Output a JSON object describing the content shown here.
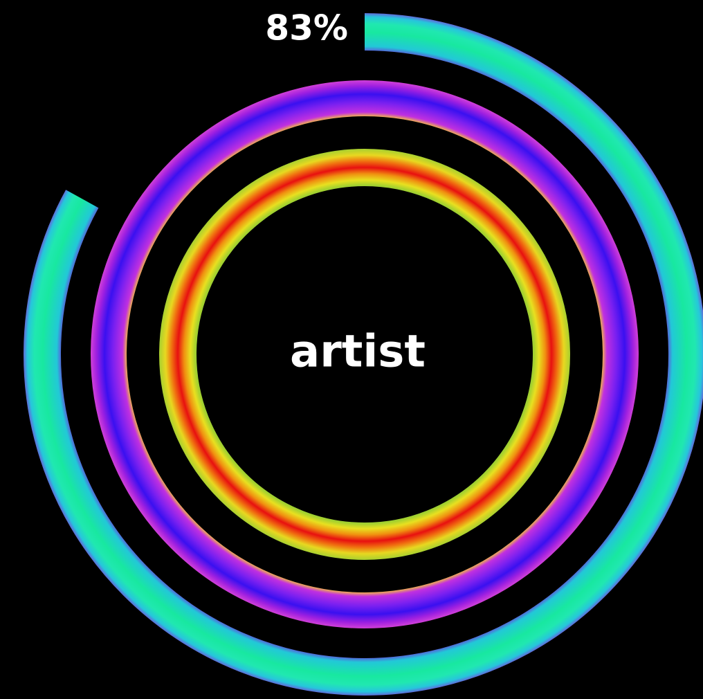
{
  "chart_data": {
    "type": "radial-progress",
    "categories": [
      "artist"
    ],
    "values": [
      83
    ],
    "value_labels": [
      "83%"
    ],
    "ylim": [
      0,
      100
    ]
  }
}
